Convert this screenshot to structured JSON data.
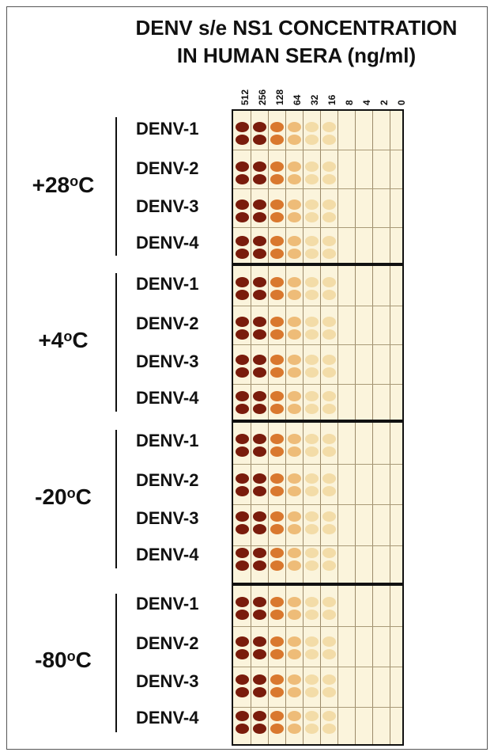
{
  "title_line1": "DENV s/e NS1 CONCENTRATION",
  "title_line2": "IN HUMAN SERA (ng/ml)",
  "concentrations": [
    "512",
    "256",
    "128",
    "64",
    "32",
    "16",
    "8",
    "4",
    "2",
    "0"
  ],
  "temperature_groups": [
    {
      "label": "+28",
      "unit": "o",
      "suffix": "C",
      "serotypes": [
        "DENV-1",
        "DENV-2",
        "DENV-3",
        "DENV-4"
      ]
    },
    {
      "label": "+4",
      "unit": "o",
      "suffix": "C",
      "serotypes": [
        "DENV-1",
        "DENV-2",
        "DENV-3",
        "DENV-4"
      ]
    },
    {
      "label": "-20",
      "unit": "o",
      "suffix": "C",
      "serotypes": [
        "DENV-1",
        "DENV-2",
        "DENV-3",
        "DENV-4"
      ]
    },
    {
      "label": "-80",
      "unit": "o",
      "suffix": "C",
      "serotypes": [
        "DENV-1",
        "DENV-2",
        "DENV-3",
        "DENV-4"
      ]
    }
  ],
  "dot_colors": [
    "#7a1c0c",
    "#b33a14",
    "#d9782e",
    "#eebc78",
    "#f3dca8"
  ]
}
